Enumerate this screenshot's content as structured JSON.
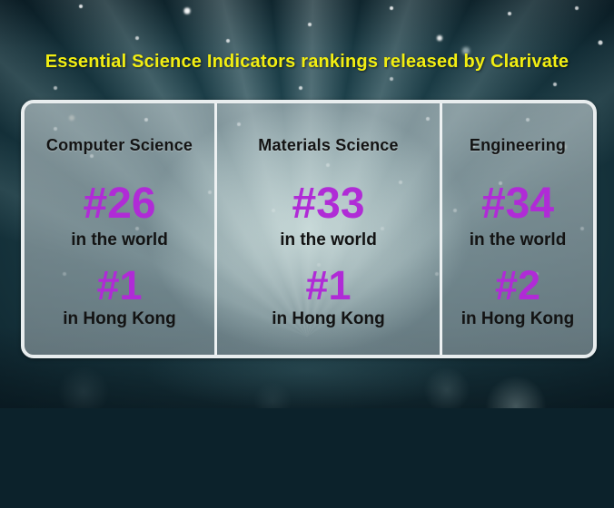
{
  "title": "Essential Science Indicators rankings released by Clarivate",
  "colors": {
    "title_yellow": "#f2ee12",
    "rank_magenta": "#b02bd6",
    "label_black": "#131313",
    "panel_border_white": "#e8edee",
    "background_teal": "#143039"
  },
  "panel": {
    "columns": [
      {
        "field": "Computer Science",
        "world_rank": "#26",
        "world_scope": "in the world",
        "hk_rank": "#1",
        "hk_scope": "in Hong Kong"
      },
      {
        "field": "Materials Science",
        "world_rank": "#33",
        "world_scope": "in the world",
        "hk_rank": "#1",
        "hk_scope": "in Hong Kong"
      },
      {
        "field": "Engineering",
        "world_rank": "#34",
        "world_scope": "in the world",
        "hk_rank": "#2",
        "hk_scope": "in Hong Kong"
      }
    ]
  },
  "chart_data": {
    "type": "table",
    "title": "Essential Science Indicators rankings released by Clarivate",
    "columns": [
      "Computer Science",
      "Materials Science",
      "Engineering"
    ],
    "rows": [
      {
        "scope": "in the world",
        "ranks": [
          "#26",
          "#33",
          "#34"
        ]
      },
      {
        "scope": "in Hong Kong",
        "ranks": [
          "#1",
          "#1",
          "#2"
        ]
      }
    ],
    "legend_position": "none",
    "grid": true
  }
}
